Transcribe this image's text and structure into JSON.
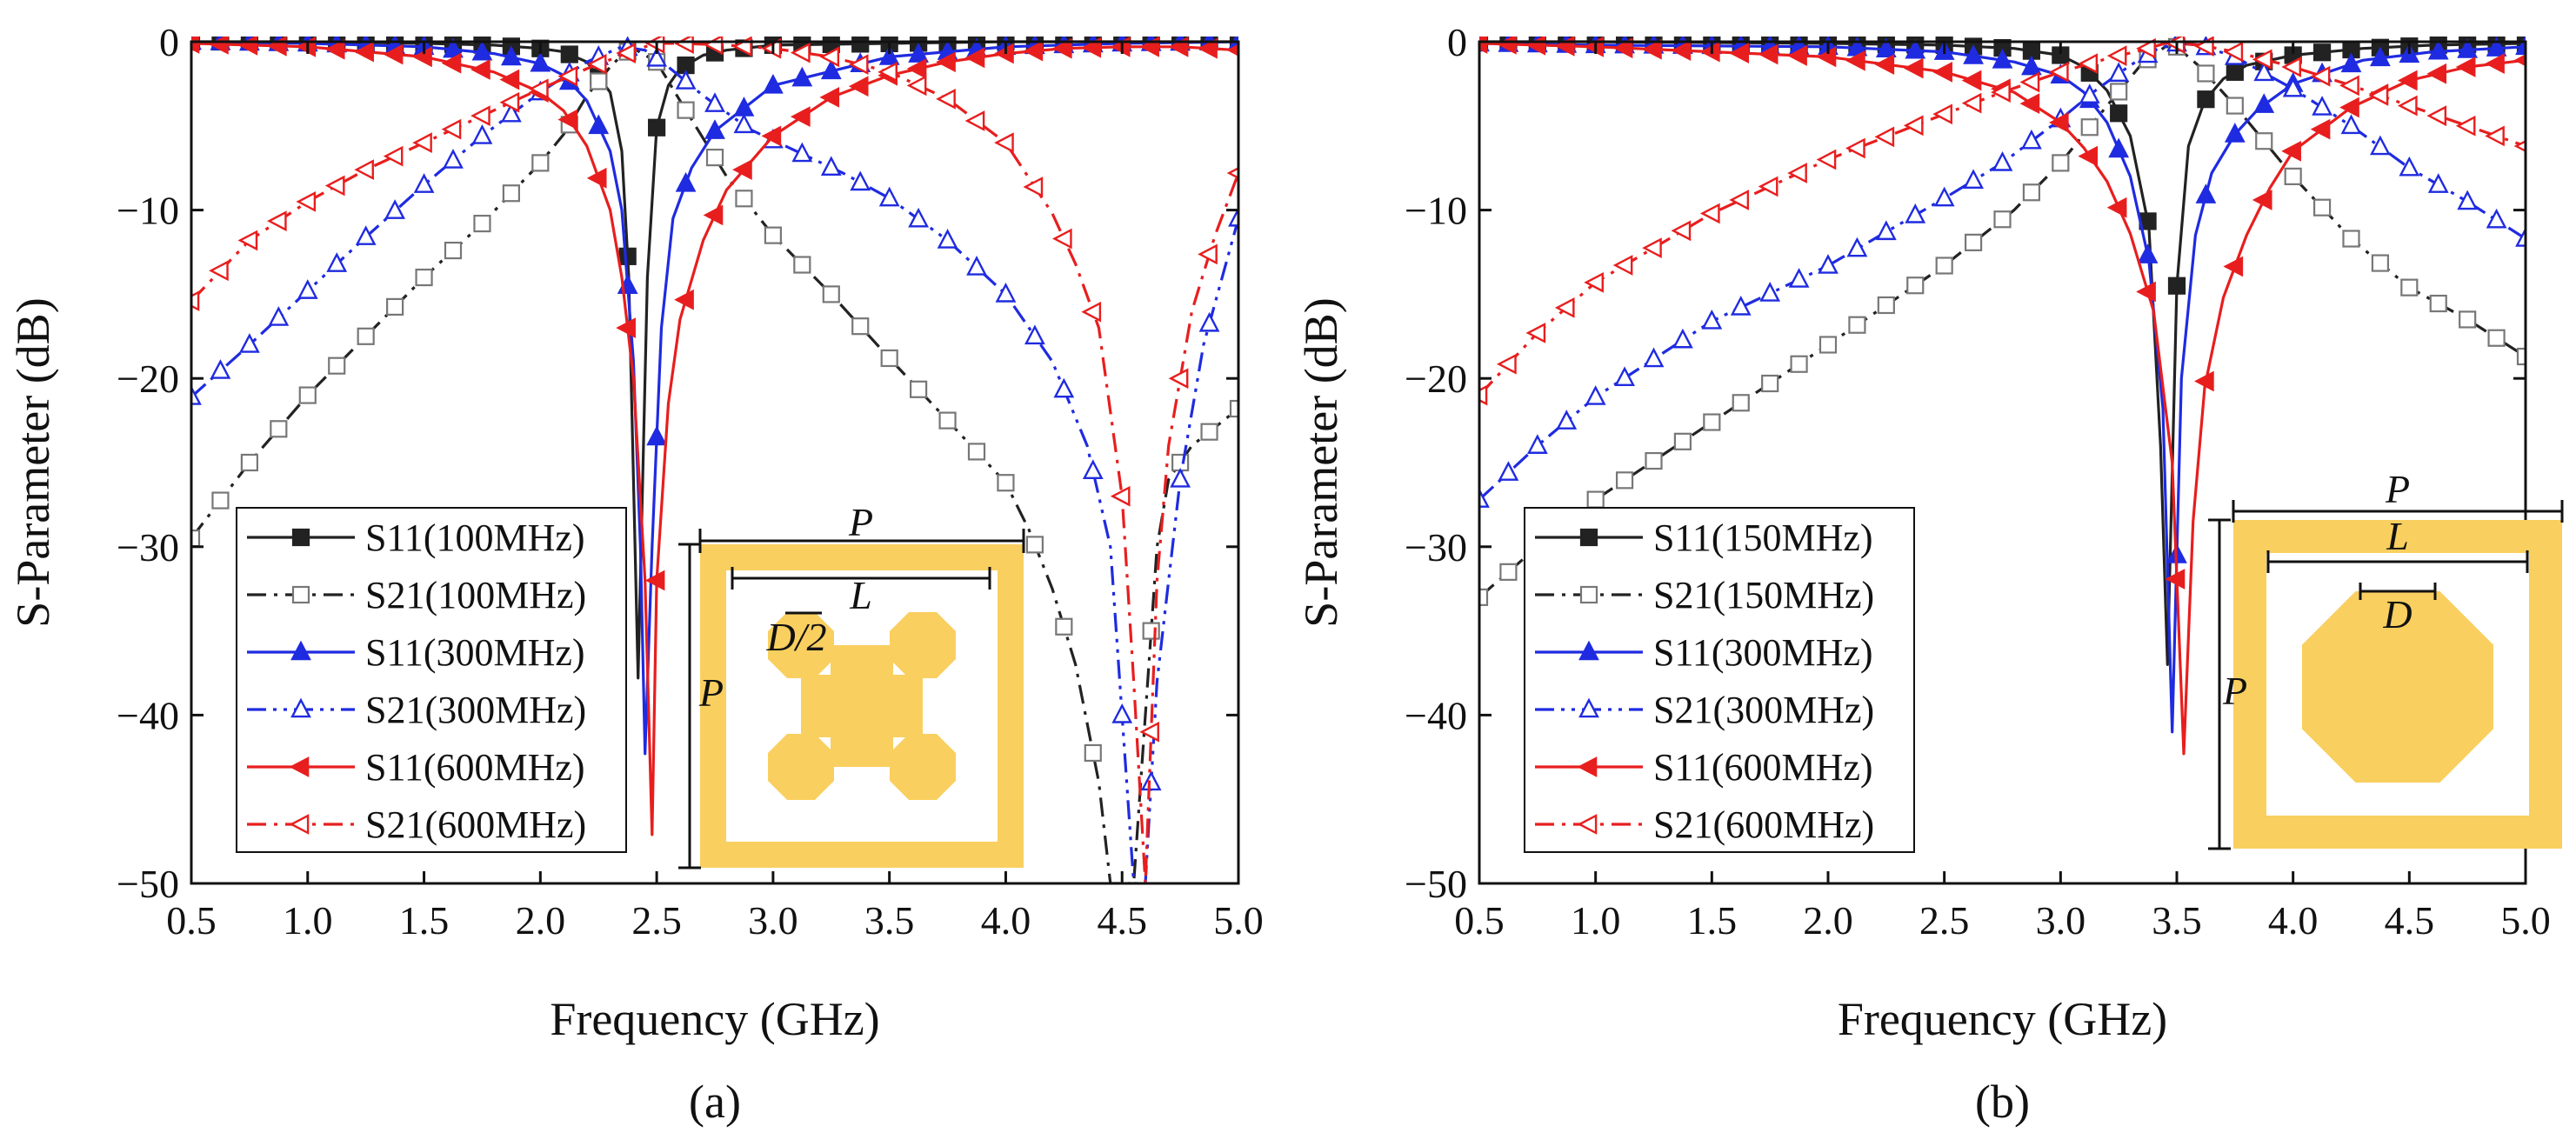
{
  "figure": {
    "panels": [
      {
        "caption": "(a)",
        "legend": [
          {
            "label": "S11(100MHz)",
            "color": "#222222",
            "marker": "square-filled",
            "dash": "solid"
          },
          {
            "label": "S21(100MHz)",
            "color": "#222222",
            "marker": "square-open",
            "dash": "dashdot"
          },
          {
            "label": "S11(300MHz)",
            "color": "#1f2be0",
            "marker": "triangle-up-filled",
            "dash": "solid"
          },
          {
            "label": "S21(300MHz)",
            "color": "#1f2be0",
            "marker": "triangle-up-open",
            "dash": "dashdotdot"
          },
          {
            "label": "S11(600MHz)",
            "color": "#e81e1e",
            "marker": "triangle-left-filled",
            "dash": "solid"
          },
          {
            "label": "S21(600MHz)",
            "color": "#e81e1e",
            "marker": "triangle-left-open",
            "dash": "dashdot"
          }
        ],
        "inset": {
          "shape": "four-octagon-cross",
          "labels": {
            "P_top": "P",
            "L": "L",
            "D": "D/2",
            "P_side": "P"
          },
          "frame_color": "#f9cf5f"
        }
      },
      {
        "caption": "(b)",
        "legend": [
          {
            "label": "S11(150MHz)",
            "color": "#222222",
            "marker": "square-filled",
            "dash": "solid"
          },
          {
            "label": "S21(150MHz)",
            "color": "#222222",
            "marker": "square-open",
            "dash": "dashdot"
          },
          {
            "label": "S11(300MHz)",
            "color": "#1f2be0",
            "marker": "triangle-up-filled",
            "dash": "solid"
          },
          {
            "label": "S21(300MHz)",
            "color": "#1f2be0",
            "marker": "triangle-up-open",
            "dash": "dashdotdot"
          },
          {
            "label": "S11(600MHz)",
            "color": "#e81e1e",
            "marker": "triangle-left-filled",
            "dash": "solid"
          },
          {
            "label": "S21(600MHz)",
            "color": "#e81e1e",
            "marker": "triangle-left-open",
            "dash": "dashdot"
          }
        ],
        "inset": {
          "shape": "single-octagon",
          "labels": {
            "P_top": "P",
            "L": "L",
            "D": "D",
            "P_side": "P"
          },
          "frame_color": "#f9cf5f"
        }
      }
    ]
  },
  "chart_data": [
    {
      "type": "line",
      "title": "",
      "caption": "(a)",
      "xlabel": "Frequency (GHz)",
      "ylabel": "S-Parameter (dB)",
      "xlim": [
        0.5,
        5.0
      ],
      "ylim": [
        -50,
        0
      ],
      "xticks": [
        "0.5",
        "1.0",
        "1.5",
        "2.0",
        "2.5",
        "3.0",
        "3.5",
        "4.0",
        "4.5",
        "5.0"
      ],
      "yticks": [
        "0",
        "−10",
        "−20",
        "−30",
        "−40",
        "−50"
      ],
      "grid": false,
      "legend_position": "bottom-left",
      "series": [
        {
          "name": "S11(100MHz)",
          "x": [
            0.5,
            1.0,
            1.5,
            1.8,
            2.0,
            2.1,
            2.2,
            2.3,
            2.35,
            2.38,
            2.42,
            2.46,
            2.5,
            2.55,
            2.6,
            2.7,
            2.8,
            3.0,
            3.5,
            4.0,
            4.5,
            5.0
          ],
          "values": [
            0,
            0,
            -0.1,
            -0.2,
            -0.4,
            -0.6,
            -1.2,
            -3.0,
            -6.5,
            -14,
            -37.8,
            -14,
            -5.1,
            -2.6,
            -1.6,
            -0.8,
            -0.5,
            -0.2,
            -0.1,
            0,
            0,
            0
          ]
        },
        {
          "name": "S21(100MHz)",
          "x": [
            0.5,
            0.75,
            1.0,
            1.25,
            1.5,
            1.75,
            2.0,
            2.1,
            2.2,
            2.3,
            2.35,
            2.4,
            2.5,
            2.6,
            2.8,
            3.0,
            3.25,
            3.5,
            3.75,
            4.0,
            4.1,
            4.2,
            4.3,
            4.4,
            4.45,
            4.55,
            4.6,
            4.65,
            4.7,
            4.8,
            5.0
          ],
          "values": [
            -29.5,
            -25,
            -21,
            -17.5,
            -14,
            -10.8,
            -7.2,
            -5.5,
            -3.2,
            -1.5,
            -0.8,
            -0.4,
            -1.2,
            -3.5,
            -8,
            -11.5,
            -15,
            -18.8,
            -22.5,
            -26.2,
            -29,
            -32.5,
            -37,
            -44,
            -50,
            -50,
            -40,
            -30,
            -26,
            -24,
            -21.8
          ]
        },
        {
          "name": "S11(300MHz)",
          "x": [
            0.5,
            1.0,
            1.5,
            1.8,
            2.0,
            2.1,
            2.2,
            2.3,
            2.35,
            2.4,
            2.43,
            2.45,
            2.48,
            2.52,
            2.57,
            2.65,
            2.75,
            3.0,
            3.5,
            4.0,
            4.5,
            5.0
          ],
          "values": [
            0,
            -0.1,
            -0.3,
            -0.7,
            -1.3,
            -2.0,
            -3.5,
            -6.5,
            -10,
            -19,
            -30,
            -42.3,
            -30,
            -17,
            -10.5,
            -7.5,
            -5.3,
            -2.6,
            -0.9,
            -0.3,
            -0.1,
            0
          ]
        },
        {
          "name": "S21(300MHz)",
          "x": [
            0.5,
            0.75,
            1.0,
            1.25,
            1.5,
            1.75,
            2.0,
            2.2,
            2.35,
            2.45,
            2.55,
            2.7,
            2.9,
            3.1,
            3.3,
            3.5,
            3.75,
            4.0,
            4.2,
            4.35,
            4.45,
            4.5,
            4.55,
            4.6,
            4.65,
            4.75,
            4.85,
            5.0
          ],
          "values": [
            -21.1,
            -18,
            -14.8,
            -11.6,
            -8.5,
            -5.6,
            -3.0,
            -1.2,
            -0.3,
            -0.5,
            -1.5,
            -3.2,
            -5.2,
            -6.5,
            -7.8,
            -9.3,
            -11.8,
            -15,
            -19,
            -24,
            -30,
            -40,
            -50,
            -50,
            -38,
            -26,
            -18,
            -10.5
          ]
        },
        {
          "name": "S11(600MHz)",
          "x": [
            0.5,
            1.0,
            1.5,
            1.8,
            2.0,
            2.1,
            2.2,
            2.3,
            2.35,
            2.4,
            2.45,
            2.48,
            2.5,
            2.55,
            2.6,
            2.7,
            2.8,
            3.0,
            3.25,
            3.5,
            3.75,
            4.0,
            4.25,
            4.5,
            4.75,
            5.0
          ],
          "values": [
            -0.1,
            -0.3,
            -0.9,
            -1.8,
            -3.0,
            -4.1,
            -6.2,
            -10,
            -14,
            -20,
            -32,
            -47.1,
            -32,
            -21.5,
            -16.5,
            -11.8,
            -8.8,
            -5.6,
            -3.3,
            -2.0,
            -1.2,
            -0.7,
            -0.4,
            -0.3,
            -0.3,
            -0.5
          ]
        },
        {
          "name": "S21(600MHz)",
          "x": [
            0.5,
            0.75,
            1.0,
            1.25,
            1.5,
            1.75,
            2.0,
            2.2,
            2.35,
            2.45,
            2.5,
            2.6,
            2.8,
            3.0,
            3.25,
            3.5,
            3.75,
            4.0,
            4.2,
            4.3,
            4.4,
            4.5,
            4.55,
            4.6,
            4.65,
            4.7,
            4.8,
            4.9,
            5.0
          ],
          "values": [
            -15.4,
            -11.8,
            -9.5,
            -7.6,
            -6.0,
            -4.4,
            -2.8,
            -1.6,
            -0.8,
            -0.3,
            -0.1,
            -0.1,
            -0.2,
            -0.4,
            -0.9,
            -1.8,
            -3.4,
            -6.0,
            -10.2,
            -13.2,
            -17,
            -27,
            -38,
            -50,
            -32,
            -24,
            -16,
            -11.5,
            -7.8
          ]
        }
      ]
    },
    {
      "type": "line",
      "title": "",
      "caption": "(b)",
      "xlabel": "Frequency (GHz)",
      "ylabel": "S-Parameter (dB)",
      "xlim": [
        0.5,
        5.0
      ],
      "ylim": [
        -50,
        0
      ],
      "xticks": [
        "0.5",
        "1.0",
        "1.5",
        "2.0",
        "2.5",
        "3.0",
        "3.5",
        "4.0",
        "4.5",
        "5.0"
      ],
      "yticks": [
        "0",
        "−10",
        "−20",
        "−30",
        "−40",
        "−50"
      ],
      "grid": false,
      "legend_position": "bottom-left",
      "series": [
        {
          "name": "S11(150MHz)",
          "x": [
            0.5,
            1.0,
            2.0,
            2.5,
            2.8,
            3.0,
            3.1,
            3.2,
            3.3,
            3.38,
            3.43,
            3.46,
            3.5,
            3.55,
            3.62,
            3.7,
            3.8,
            3.9,
            4.0,
            4.3,
            4.6,
            5.0
          ],
          "values": [
            0,
            0,
            -0.1,
            -0.2,
            -0.4,
            -0.8,
            -1.5,
            -2.9,
            -5.6,
            -11,
            -24,
            -37,
            -14.5,
            -6.2,
            -3.5,
            -2.2,
            -1.4,
            -1.1,
            -0.8,
            -0.4,
            -0.2,
            -0.1
          ]
        },
        {
          "name": "S21(150MHz)",
          "x": [
            0.5,
            0.75,
            1.0,
            1.5,
            2.0,
            2.5,
            2.8,
            3.0,
            3.2,
            3.35,
            3.45,
            3.5,
            3.6,
            3.75,
            4.0,
            4.25,
            4.5,
            4.75,
            5.0
          ],
          "values": [
            -33,
            -30,
            -27.2,
            -22.6,
            -18,
            -13.3,
            -10,
            -7.2,
            -3.8,
            -1.3,
            -0.3,
            -0.3,
            -1.5,
            -3.8,
            -8,
            -11.7,
            -14.6,
            -16.5,
            -18.7
          ]
        },
        {
          "name": "S11(300MHz)",
          "x": [
            0.5,
            1.0,
            2.0,
            2.5,
            2.8,
            3.0,
            3.1,
            3.2,
            3.3,
            3.38,
            3.44,
            3.48,
            3.52,
            3.58,
            3.65,
            3.75,
            3.85,
            4.0,
            4.3,
            4.6,
            5.0
          ],
          "values": [
            -0.1,
            -0.2,
            -0.3,
            -0.6,
            -1.2,
            -2.0,
            -3.0,
            -4.8,
            -8,
            -13,
            -21.8,
            -41,
            -20,
            -11.5,
            -7.8,
            -5.5,
            -4,
            -2.5,
            -1.1,
            -0.6,
            -0.3
          ]
        },
        {
          "name": "S21(300MHz)",
          "x": [
            0.5,
            0.75,
            1.0,
            1.5,
            2.0,
            2.5,
            2.75,
            3.0,
            3.15,
            3.3,
            3.42,
            3.5,
            3.6,
            3.75,
            4.0,
            4.25,
            4.5,
            4.75,
            5.0
          ],
          "values": [
            -27.2,
            -24,
            -21.1,
            -16.6,
            -13.3,
            -9.3,
            -7.2,
            -4.6,
            -2.9,
            -1.4,
            -0.4,
            -0.1,
            -0.2,
            -0.9,
            -2.8,
            -5.0,
            -7.5,
            -9.5,
            -11.7
          ]
        },
        {
          "name": "S11(600MHz)",
          "x": [
            0.5,
            1.0,
            2.0,
            2.5,
            2.8,
            3.0,
            3.1,
            3.2,
            3.3,
            3.4,
            3.48,
            3.53,
            3.57,
            3.62,
            3.7,
            3.8,
            3.9,
            4.0,
            4.25,
            4.5,
            4.75,
            5.0
          ],
          "values": [
            -0.1,
            -0.3,
            -0.9,
            -1.8,
            -3.0,
            -4.8,
            -6.3,
            -8.3,
            -11.4,
            -16,
            -25,
            -42.3,
            -28.5,
            -20.5,
            -15.2,
            -11.5,
            -8.7,
            -6.5,
            -3.9,
            -2.3,
            -1.5,
            -1.1
          ]
        },
        {
          "name": "S21(600MHz)",
          "x": [
            0.5,
            0.75,
            1.0,
            1.5,
            2.0,
            2.5,
            2.75,
            3.0,
            3.2,
            3.35,
            3.45,
            3.5,
            3.6,
            3.75,
            4.0,
            4.25,
            4.5,
            4.75,
            5.0
          ],
          "values": [
            -21,
            -17.3,
            -14.3,
            -10.2,
            -7.0,
            -4.3,
            -3.0,
            -1.8,
            -1.0,
            -0.5,
            -0.1,
            -0.1,
            -0.2,
            -0.6,
            -1.5,
            -2.6,
            -3.8,
            -5.0,
            -6.2
          ]
        }
      ]
    }
  ]
}
